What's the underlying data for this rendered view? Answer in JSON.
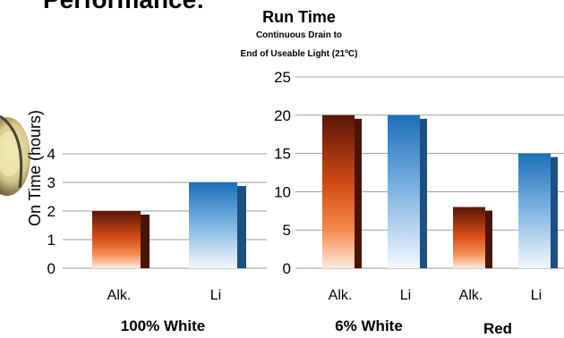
{
  "header": {
    "partial_heading": "Performance:"
  },
  "chart_data": [
    {
      "type": "bar",
      "title": "",
      "ylabel": "On Time (hours)",
      "ylim": [
        0,
        4
      ],
      "yticks": [
        0,
        1,
        2,
        3,
        4
      ],
      "categories": [
        "Alk.",
        "Li"
      ],
      "values": [
        2,
        3
      ],
      "group_label": "100% White",
      "colors": [
        "#e85a1a",
        "#2f86c8"
      ],
      "grid": true
    },
    {
      "type": "bar",
      "title": "Run Time",
      "subtitle_lines": [
        "Continuous Drain to",
        "End of Useable Light (21ºC)"
      ],
      "ylim": [
        0,
        25
      ],
      "yticks": [
        0,
        5,
        10,
        15,
        20,
        25
      ],
      "categories": [
        "Alk.",
        "Li",
        "Alk.",
        "Li"
      ],
      "values": [
        20,
        20,
        8,
        15
      ],
      "groups": [
        {
          "label": "6% White",
          "categories": [
            "Alk.",
            "Li"
          ]
        },
        {
          "label": "Red",
          "categories": [
            "Alk.",
            "Li"
          ]
        }
      ],
      "colors": [
        "#e85a1a",
        "#2f86c8",
        "#e85a1a",
        "#2f86c8"
      ],
      "grid": true
    }
  ]
}
